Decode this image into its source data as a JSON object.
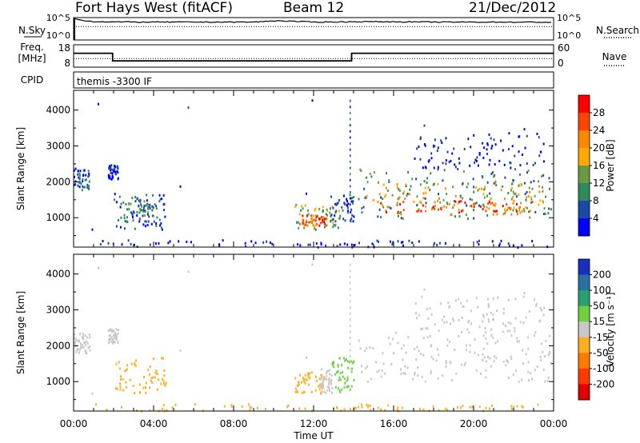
{
  "header": {
    "station": "Fort Hays West (fitACF)",
    "beam": "Beam 12",
    "date": "21/Dec/2012"
  },
  "panels": {
    "noise": {
      "left_label": "N.Sky",
      "left_ticks": [
        "10^5",
        "10^0"
      ],
      "right_label": "N.Search",
      "right_ticks": [
        "10^5",
        "10^0"
      ]
    },
    "freq": {
      "left_label_1": "Freq.",
      "left_label_2": "[MHz]",
      "left_ticks": [
        "18",
        "8"
      ],
      "right_label": "Nave",
      "right_ticks": [
        "60",
        "0"
      ]
    },
    "cpid": {
      "label": "CPID",
      "text": "themis -3300 IF"
    }
  },
  "colorbars": {
    "power": {
      "label": "Power [dB]",
      "ticks": [
        "28",
        "24",
        "20",
        "16",
        "12",
        "8",
        "4"
      ],
      "colors": [
        "#ff0000",
        "#ff4400",
        "#ff8800",
        "#ffaa00",
        "#6a9a44",
        "#2e8a58",
        "#1a4aa8",
        "#0000ff"
      ]
    },
    "velocity": {
      "label": "Velocity [m s⁻¹]",
      "ticks": [
        "200",
        "100",
        "50",
        "15",
        "-15",
        "-50",
        "-100",
        "-200"
      ],
      "colors": [
        "#1830c0",
        "#2a70a0",
        "#28a070",
        "#70d040",
        "#c8c8c8",
        "#ffb020",
        "#ff7a00",
        "#ff3a00",
        "#e00000"
      ]
    }
  },
  "chart_data": [
    {
      "type": "line",
      "panel": "noise",
      "x": [
        0,
        24
      ],
      "series": [
        {
          "name": "N.Sky",
          "x": [
            0,
            0.3,
            1,
            3,
            6,
            9,
            10.2,
            12,
            15,
            18,
            21,
            24
          ],
          "values": [
            0.95,
            0.9,
            0.82,
            0.8,
            0.8,
            0.8,
            0.86,
            0.8,
            0.82,
            0.8,
            0.8,
            0.79
          ]
        }
      ],
      "xlim": [
        0,
        24
      ]
    },
    {
      "type": "line",
      "panel": "freq",
      "series": [
        {
          "name": "Freq. [MHz]",
          "x": [
            0,
            1.95,
            1.95,
            13.9,
            13.9,
            24
          ],
          "values": [
            14.2,
            14.2,
            10.8,
            10.8,
            14.2,
            14.2
          ]
        },
        {
          "name": "Nave",
          "x": [
            0,
            24
          ],
          "values": [
            23,
            23
          ]
        }
      ],
      "ylim_left": [
        8,
        18
      ],
      "ylim_right": [
        0,
        60
      ],
      "xlim": [
        0,
        24
      ]
    },
    {
      "type": "heatmap",
      "panel": "power",
      "ylabel": "Slant Range [km]",
      "yticks": [
        1000,
        2000,
        3000,
        4000
      ],
      "ylim": [
        180,
        4550
      ],
      "xlim": [
        0,
        24
      ],
      "colorbar": "Power [dB]",
      "regions": [
        {
          "t0": 0.0,
          "t1": 0.8,
          "r0": 1800,
          "r1": 2400,
          "level": 1
        },
        {
          "t0": 1.7,
          "t1": 2.2,
          "r0": 2100,
          "r1": 2500,
          "level": 0
        },
        {
          "t0": 2.0,
          "t1": 4.6,
          "r0": 700,
          "r1": 1700,
          "level": 1
        },
        {
          "t0": 2.3,
          "t1": 4.0,
          "r0": 900,
          "r1": 1500,
          "level": 2
        },
        {
          "t0": 11.0,
          "t1": 13.3,
          "r0": 700,
          "r1": 1400,
          "level": 3
        },
        {
          "t0": 11.4,
          "t1": 12.7,
          "r0": 800,
          "r1": 1100,
          "level": 6
        },
        {
          "t0": 12.8,
          "t1": 14.0,
          "r0": 900,
          "r1": 1700,
          "level": 1
        },
        {
          "t0": 14.2,
          "t1": 23.9,
          "r0": 1000,
          "r1": 2400,
          "level": 2
        },
        {
          "t0": 14.6,
          "t1": 23.6,
          "r0": 1200,
          "r1": 2000,
          "level": 4
        },
        {
          "t0": 15.0,
          "t1": 23.0,
          "r0": 1100,
          "r1": 1500,
          "level": 6
        },
        {
          "t0": 17.0,
          "t1": 23.5,
          "r0": 2400,
          "r1": 3400,
          "level": 0
        },
        {
          "t0": 0.5,
          "t1": 23.8,
          "r0": 200,
          "r1": 400,
          "level": 0
        }
      ]
    },
    {
      "type": "heatmap",
      "panel": "velocity",
      "ylabel": "Slant Range [km]",
      "xlabel": "Time UT",
      "xticks": [
        "00:00",
        "04:00",
        "08:00",
        "12:00",
        "16:00",
        "20:00",
        "00:00"
      ],
      "yticks": [
        1000,
        2000,
        3000,
        4000
      ],
      "ylim": [
        180,
        4550
      ],
      "xlim": [
        0,
        24
      ],
      "colorbar": "Velocity [m s⁻¹]",
      "regions": [
        {
          "t0": 0.0,
          "t1": 0.8,
          "r0": 1800,
          "r1": 2400,
          "vel": 0
        },
        {
          "t0": 1.7,
          "t1": 2.2,
          "r0": 2100,
          "r1": 2500,
          "vel": 0
        },
        {
          "t0": 2.0,
          "t1": 4.6,
          "r0": 700,
          "r1": 1700,
          "vel": -40
        },
        {
          "t0": 11.0,
          "t1": 12.5,
          "r0": 700,
          "r1": 1300,
          "vel": -40
        },
        {
          "t0": 12.3,
          "t1": 12.9,
          "r0": 700,
          "r1": 1400,
          "vel": 0
        },
        {
          "t0": 12.9,
          "t1": 14.0,
          "r0": 700,
          "r1": 1700,
          "vel": 30
        },
        {
          "t0": 14.2,
          "t1": 23.9,
          "r0": 1000,
          "r1": 2400,
          "vel": 0
        },
        {
          "t0": 17.0,
          "t1": 23.5,
          "r0": 2400,
          "r1": 3400,
          "vel": 0
        },
        {
          "t0": 0.5,
          "t1": 23.8,
          "r0": 200,
          "r1": 400,
          "vel": -40
        }
      ]
    }
  ]
}
